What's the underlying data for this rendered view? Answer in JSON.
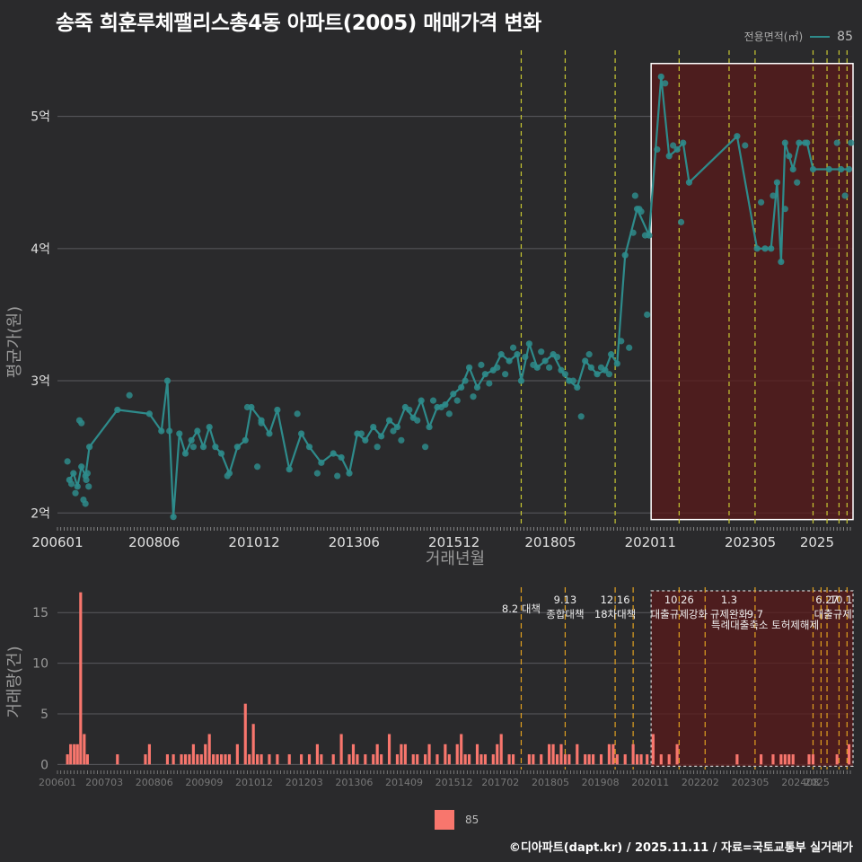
{
  "title": "송죽 희훈루체팰리스총4동 아파트(2005) 매매가격 변화",
  "legend": {
    "label": "전용면적(㎡)",
    "series_name": "85",
    "line_color": "#2e8b8b",
    "bar_color": "#f8766d"
  },
  "footer": "©디아파트(dapt.kr) / 2025.11.11 / 자료=국토교통부 실거래가",
  "chart_data": [
    {
      "type": "line",
      "title": "송죽 희훈루체팰리스총4동 아파트(2005) 매매가격 변화",
      "xlabel": "거래년월",
      "ylabel": "평균가(원)",
      "ylim": [
        1.9,
        5.5
      ],
      "y_ticks": [
        2,
        3,
        4,
        5
      ],
      "y_tick_labels": [
        "2억",
        "3억",
        "4억",
        "5억"
      ],
      "x_range": [
        2006.0,
        2025.9
      ],
      "x_ticks": [
        2006.0,
        2008.42,
        2010.92,
        2013.42,
        2015.92,
        2018.33,
        2020.83,
        2023.33,
        2025.0
      ],
      "x_tick_labels": [
        "200601",
        "200806",
        "201012",
        "201306",
        "201512",
        "201805",
        "202011",
        "202305",
        "2025"
      ],
      "series": [
        {
          "name": "85",
          "color": "#2e8b8b",
          "x": [
            2006.3,
            2006.4,
            2006.5,
            2006.6,
            2006.7,
            2006.8,
            2007.5,
            2008.3,
            2008.6,
            2008.75,
            2008.9,
            2009.05,
            2009.2,
            2009.35,
            2009.5,
            2009.65,
            2009.8,
            2009.95,
            2010.1,
            2010.3,
            2010.5,
            2010.7,
            2010.85,
            2011.1,
            2011.3,
            2011.5,
            2011.8,
            2012.1,
            2012.3,
            2012.6,
            2012.9,
            2013.1,
            2013.3,
            2013.5,
            2013.7,
            2013.9,
            2014.1,
            2014.3,
            2014.5,
            2014.7,
            2014.9,
            2015.1,
            2015.3,
            2015.5,
            2015.7,
            2015.9,
            2016.1,
            2016.3,
            2016.5,
            2016.7,
            2016.9,
            2017.1,
            2017.3,
            2017.5,
            2017.6,
            2017.8,
            2018.0,
            2018.2,
            2018.4,
            2018.6,
            2018.8,
            2019.0,
            2019.2,
            2019.35,
            2019.5,
            2019.7,
            2019.85,
            2020.0,
            2020.2,
            2020.5,
            2020.8,
            2021.1,
            2021.3,
            2021.5,
            2021.65,
            2021.8,
            2023.0,
            2023.5,
            2023.7,
            2023.85,
            2024.0,
            2024.1,
            2024.2,
            2024.3,
            2024.4,
            2024.55,
            2024.75,
            2024.9,
            2025.3,
            2025.6,
            2025.8
          ],
          "values": [
            2.25,
            2.3,
            2.2,
            2.35,
            2.28,
            2.5,
            2.78,
            2.75,
            2.62,
            3.0,
            1.97,
            2.6,
            2.45,
            2.55,
            2.62,
            2.5,
            2.65,
            2.5,
            2.45,
            2.3,
            2.5,
            2.55,
            2.8,
            2.7,
            2.6,
            2.78,
            2.33,
            2.6,
            2.5,
            2.38,
            2.45,
            2.42,
            2.3,
            2.6,
            2.55,
            2.65,
            2.58,
            2.7,
            2.65,
            2.8,
            2.72,
            2.85,
            2.65,
            2.8,
            2.82,
            2.9,
            2.95,
            3.1,
            2.95,
            3.05,
            3.08,
            3.2,
            3.15,
            3.2,
            3.0,
            3.28,
            3.1,
            3.15,
            3.2,
            3.08,
            3.0,
            2.95,
            3.15,
            3.1,
            3.05,
            3.08,
            3.2,
            3.13,
            3.95,
            4.3,
            4.1,
            5.3,
            4.7,
            4.75,
            4.8,
            4.5,
            4.85,
            4.0,
            4.0,
            4.0,
            4.5,
            3.9,
            4.8,
            4.7,
            4.6,
            4.8,
            4.8,
            4.6,
            4.6,
            4.6,
            4.6
          ]
        }
      ],
      "scatter_points": {
        "x": [
          2006.25,
          2006.35,
          2006.45,
          2006.55,
          2006.6,
          2006.65,
          2006.7,
          2006.72,
          2006.75,
          2006.78,
          2007.8,
          2008.8,
          2009.4,
          2010.25,
          2010.75,
          2011.0,
          2011.1,
          2012.0,
          2012.5,
          2013.0,
          2013.6,
          2014.0,
          2014.4,
          2014.6,
          2014.8,
          2015.0,
          2015.2,
          2015.4,
          2015.6,
          2015.8,
          2016.0,
          2016.2,
          2016.4,
          2016.6,
          2016.8,
          2017.0,
          2017.2,
          2017.4,
          2017.7,
          2017.9,
          2018.1,
          2018.3,
          2018.5,
          2018.7,
          2018.9,
          2019.1,
          2019.3,
          2019.6,
          2019.8,
          2020.1,
          2020.3,
          2020.4,
          2020.45,
          2020.55,
          2020.6,
          2020.7,
          2020.75,
          2021.0,
          2021.2,
          2021.4,
          2021.6,
          2023.2,
          2023.6,
          2023.9,
          2024.2,
          2024.5,
          2024.7,
          2025.5,
          2025.7,
          2025.85
        ],
        "values": [
          2.39,
          2.22,
          2.15,
          2.7,
          2.68,
          2.1,
          2.07,
          2.25,
          2.3,
          2.2,
          2.89,
          2.62,
          2.5,
          2.28,
          2.8,
          2.35,
          2.68,
          2.75,
          2.3,
          2.28,
          2.6,
          2.5,
          2.62,
          2.55,
          2.78,
          2.7,
          2.5,
          2.85,
          2.8,
          2.75,
          2.85,
          3.0,
          2.88,
          3.12,
          2.98,
          3.1,
          3.05,
          3.25,
          3.18,
          3.12,
          3.22,
          3.1,
          3.18,
          3.05,
          3.0,
          2.73,
          3.2,
          3.1,
          3.05,
          3.3,
          3.25,
          4.12,
          4.4,
          4.3,
          4.28,
          4.1,
          3.5,
          4.75,
          5.25,
          4.78,
          4.2,
          4.78,
          4.35,
          4.4,
          4.3,
          4.5,
          4.8,
          4.8,
          4.4,
          4.8
        ]
      },
      "policy_lines_x": [
        2017.6,
        2018.7,
        2019.95,
        2021.55,
        2022.8,
        2023.45,
        2024.9,
        2025.25,
        2025.55,
        2025.75
      ],
      "highlight_range_x": [
        2020.85,
        2025.9
      ],
      "highlight_range_y": [
        1.95,
        5.4
      ]
    },
    {
      "type": "bar",
      "ylabel": "거래량(건)",
      "ylim": [
        -0.5,
        17.5
      ],
      "y_ticks": [
        0,
        5,
        10,
        15
      ],
      "x_range": [
        2006.0,
        2025.9
      ],
      "x_ticks": [
        2006.0,
        2007.17,
        2008.42,
        2009.67,
        2010.92,
        2012.17,
        2013.42,
        2014.67,
        2015.92,
        2017.08,
        2018.33,
        2019.58,
        2020.83,
        2022.08,
        2023.33,
        2024.58,
        2025.0
      ],
      "x_tick_labels": [
        "200601",
        "200703",
        "200806",
        "200909",
        "201012",
        "201203",
        "201306",
        "201409",
        "201512",
        "201702",
        "201805",
        "201908",
        "202011",
        "202202",
        "202305",
        "202408",
        "2025"
      ],
      "series": [
        {
          "name": "85",
          "color": "#f8766d",
          "x": [
            2006.25,
            2006.33,
            2006.42,
            2006.5,
            2006.58,
            2006.67,
            2006.75,
            2006.83,
            2007.5,
            2008.2,
            2008.3,
            2008.75,
            2008.9,
            2009.1,
            2009.2,
            2009.3,
            2009.4,
            2009.5,
            2009.6,
            2009.7,
            2009.8,
            2009.9,
            2010.0,
            2010.1,
            2010.2,
            2010.3,
            2010.5,
            2010.7,
            2010.8,
            2010.9,
            2011.0,
            2011.1,
            2011.3,
            2011.5,
            2011.8,
            2012.1,
            2012.3,
            2012.5,
            2012.6,
            2012.9,
            2013.1,
            2013.3,
            2013.4,
            2013.5,
            2013.7,
            2013.9,
            2014.0,
            2014.1,
            2014.3,
            2014.5,
            2014.6,
            2014.7,
            2014.9,
            2015.0,
            2015.2,
            2015.3,
            2015.5,
            2015.7,
            2015.8,
            2016.0,
            2016.1,
            2016.2,
            2016.3,
            2016.5,
            2016.6,
            2016.7,
            2016.9,
            2017.0,
            2017.1,
            2017.3,
            2017.4,
            2017.8,
            2017.9,
            2018.1,
            2018.3,
            2018.4,
            2018.5,
            2018.6,
            2018.7,
            2018.8,
            2019.0,
            2019.2,
            2019.3,
            2019.4,
            2019.6,
            2019.8,
            2019.9,
            2020.0,
            2020.2,
            2020.4,
            2020.5,
            2020.6,
            2020.75,
            2020.9,
            2021.1,
            2021.3,
            2021.5,
            2023.0,
            2023.6,
            2023.9,
            2024.1,
            2024.2,
            2024.3,
            2024.4,
            2024.8,
            2024.9,
            2025.5,
            2025.8
          ],
          "values": [
            1,
            2,
            2,
            2,
            17,
            3,
            1,
            0,
            1,
            1,
            2,
            1,
            1,
            1,
            1,
            1,
            2,
            1,
            1,
            2,
            3,
            1,
            1,
            1,
            1,
            1,
            2,
            6,
            1,
            4,
            1,
            1,
            1,
            1,
            1,
            1,
            1,
            2,
            1,
            1,
            3,
            1,
            2,
            1,
            1,
            1,
            2,
            1,
            3,
            1,
            2,
            2,
            1,
            1,
            1,
            2,
            1,
            2,
            1,
            2,
            3,
            1,
            1,
            2,
            1,
            1,
            1,
            2,
            3,
            1,
            1,
            1,
            1,
            1,
            2,
            2,
            1,
            2,
            1,
            1,
            2,
            1,
            1,
            1,
            1,
            2,
            2,
            1,
            1,
            2,
            1,
            1,
            1,
            3,
            1,
            1,
            2,
            1,
            1,
            1,
            1,
            1,
            1,
            1,
            1,
            1,
            1,
            2
          ]
        }
      ],
      "policy_lines_x": [
        2017.6,
        2018.7,
        2019.95,
        2020.4,
        2021.55,
        2022.2,
        2023.45,
        2024.9,
        2025.1,
        2025.25,
        2025.55,
        2025.75
      ],
      "highlight_range_x": [
        2020.85,
        2025.9
      ],
      "annotations": [
        {
          "label": "8.2 대책",
          "x": 2017.6,
          "row": 1
        },
        {
          "label": "9.13",
          "x": 2018.7,
          "row": 0
        },
        {
          "label": "종합대책",
          "x": 2018.7,
          "row": 1.6
        },
        {
          "label": "12.16",
          "x": 2019.95,
          "row": 0
        },
        {
          "label": "18차대책",
          "x": 2019.95,
          "row": 1.6
        },
        {
          "label": "10.26",
          "x": 2021.55,
          "row": 0
        },
        {
          "label": "대출규제강화",
          "x": 2021.55,
          "row": 1.6
        },
        {
          "label": "1.3",
          "x": 2022.8,
          "row": 0
        },
        {
          "label": "규제완화",
          "x": 2022.8,
          "row": 1.6
        },
        {
          "label": "9.7",
          "x": 2023.45,
          "row": 1.6
        },
        {
          "label": "특례대출축소 토허제해제",
          "x": 2023.7,
          "row": 2.8
        },
        {
          "label": "6.27",
          "x": 2025.25,
          "row": 0
        },
        {
          "label": "10.1",
          "x": 2025.6,
          "row": 0
        },
        {
          "label": "대출규제",
          "x": 2025.4,
          "row": 1.6
        }
      ]
    }
  ]
}
